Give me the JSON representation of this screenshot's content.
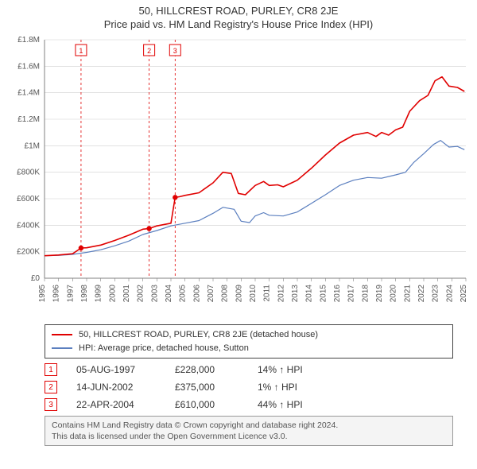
{
  "title_line1": "50, HILLCREST ROAD, PURLEY, CR8 2JE",
  "title_line2": "Price paid vs. HM Land Registry's House Price Index (HPI)",
  "chart": {
    "background_color": "#ffffff",
    "grid_color": "#cfcfcf",
    "axis_color": "#808080",
    "text_color": "#555555",
    "tick_fontsize": 10,
    "x_min": 1995,
    "x_max": 2025,
    "x_ticks": [
      1995,
      1996,
      1997,
      1998,
      1999,
      2000,
      2001,
      2002,
      2003,
      2004,
      2005,
      2006,
      2007,
      2008,
      2009,
      2010,
      2011,
      2012,
      2013,
      2014,
      2015,
      2016,
      2017,
      2018,
      2019,
      2020,
      2021,
      2022,
      2023,
      2024,
      2025
    ],
    "y_min": 0,
    "y_max": 1800000,
    "y_tick_step": 200000,
    "y_tick_labels": [
      "£0",
      "£200K",
      "£400K",
      "£600K",
      "£800K",
      "£1M",
      "£1.2M",
      "£1.4M",
      "£1.6M",
      "£1.8M"
    ],
    "marker_line_color": "#e00000",
    "marker_line_dash": "3,3",
    "marker_box_border": "#e00000",
    "marker_box_text": "#e00000",
    "sale_markers": [
      {
        "n": "1",
        "x": 1997.6,
        "y": 228000
      },
      {
        "n": "2",
        "x": 2002.45,
        "y": 375000
      },
      {
        "n": "3",
        "x": 2004.3,
        "y": 610000
      }
    ],
    "series": [
      {
        "name": "price_paid",
        "color": "#e00000",
        "width": 1.6,
        "points": [
          [
            1995,
            170000
          ],
          [
            1996,
            175000
          ],
          [
            1997,
            185000
          ],
          [
            1997.6,
            228000
          ],
          [
            1998,
            230000
          ],
          [
            1999,
            250000
          ],
          [
            2000,
            285000
          ],
          [
            2001,
            325000
          ],
          [
            2002,
            370000
          ],
          [
            2002.45,
            375000
          ],
          [
            2003,
            395000
          ],
          [
            2004,
            415000
          ],
          [
            2004.3,
            610000
          ],
          [
            2004.6,
            615000
          ],
          [
            2005,
            625000
          ],
          [
            2006,
            645000
          ],
          [
            2007,
            720000
          ],
          [
            2007.7,
            800000
          ],
          [
            2008.3,
            790000
          ],
          [
            2008.8,
            640000
          ],
          [
            2009.3,
            630000
          ],
          [
            2010,
            700000
          ],
          [
            2010.6,
            730000
          ],
          [
            2011,
            700000
          ],
          [
            2011.6,
            705000
          ],
          [
            2012,
            690000
          ],
          [
            2012.6,
            720000
          ],
          [
            2013,
            740000
          ],
          [
            2014,
            830000
          ],
          [
            2015,
            930000
          ],
          [
            2016,
            1020000
          ],
          [
            2017,
            1080000
          ],
          [
            2018,
            1100000
          ],
          [
            2018.6,
            1070000
          ],
          [
            2019,
            1100000
          ],
          [
            2019.5,
            1080000
          ],
          [
            2020,
            1120000
          ],
          [
            2020.5,
            1140000
          ],
          [
            2021,
            1260000
          ],
          [
            2021.7,
            1340000
          ],
          [
            2022.3,
            1380000
          ],
          [
            2022.8,
            1490000
          ],
          [
            2023.3,
            1520000
          ],
          [
            2023.8,
            1450000
          ],
          [
            2024.4,
            1440000
          ],
          [
            2024.9,
            1410000
          ]
        ]
      },
      {
        "name": "hpi",
        "color": "#5b7fbf",
        "width": 1.2,
        "points": [
          [
            1995,
            170000
          ],
          [
            1996,
            172000
          ],
          [
            1997,
            180000
          ],
          [
            1998,
            195000
          ],
          [
            1999,
            215000
          ],
          [
            2000,
            245000
          ],
          [
            2001,
            280000
          ],
          [
            2002,
            330000
          ],
          [
            2003,
            360000
          ],
          [
            2004,
            395000
          ],
          [
            2005,
            415000
          ],
          [
            2006,
            435000
          ],
          [
            2007,
            490000
          ],
          [
            2007.7,
            535000
          ],
          [
            2008.5,
            520000
          ],
          [
            2009,
            430000
          ],
          [
            2009.6,
            420000
          ],
          [
            2010,
            470000
          ],
          [
            2010.6,
            495000
          ],
          [
            2011,
            475000
          ],
          [
            2012,
            470000
          ],
          [
            2013,
            500000
          ],
          [
            2014,
            565000
          ],
          [
            2015,
            630000
          ],
          [
            2016,
            700000
          ],
          [
            2017,
            740000
          ],
          [
            2018,
            760000
          ],
          [
            2019,
            755000
          ],
          [
            2020,
            780000
          ],
          [
            2020.7,
            800000
          ],
          [
            2021.3,
            875000
          ],
          [
            2022,
            940000
          ],
          [
            2022.7,
            1010000
          ],
          [
            2023.2,
            1040000
          ],
          [
            2023.8,
            990000
          ],
          [
            2024.4,
            995000
          ],
          [
            2024.9,
            970000
          ]
        ]
      }
    ]
  },
  "legend": {
    "border_color": "#444444",
    "items": [
      {
        "color": "#e00000",
        "label": "50, HILLCREST ROAD, PURLEY, CR8 2JE (detached house)"
      },
      {
        "color": "#5b7fbf",
        "label": "HPI: Average price, detached house, Sutton"
      }
    ]
  },
  "sales": [
    {
      "n": "1",
      "date": "05-AUG-1997",
      "price": "£228,000",
      "delta": "14% ↑ HPI"
    },
    {
      "n": "2",
      "date": "14-JUN-2002",
      "price": "£375,000",
      "delta": "1% ↑ HPI"
    },
    {
      "n": "3",
      "date": "22-APR-2004",
      "price": "£610,000",
      "delta": "44% ↑ HPI"
    }
  ],
  "footer": {
    "line1": "Contains HM Land Registry data © Crown copyright and database right 2024.",
    "line2": "This data is licensed under the Open Government Licence v3.0.",
    "background": "#f4f4f4",
    "border": "#999999"
  }
}
